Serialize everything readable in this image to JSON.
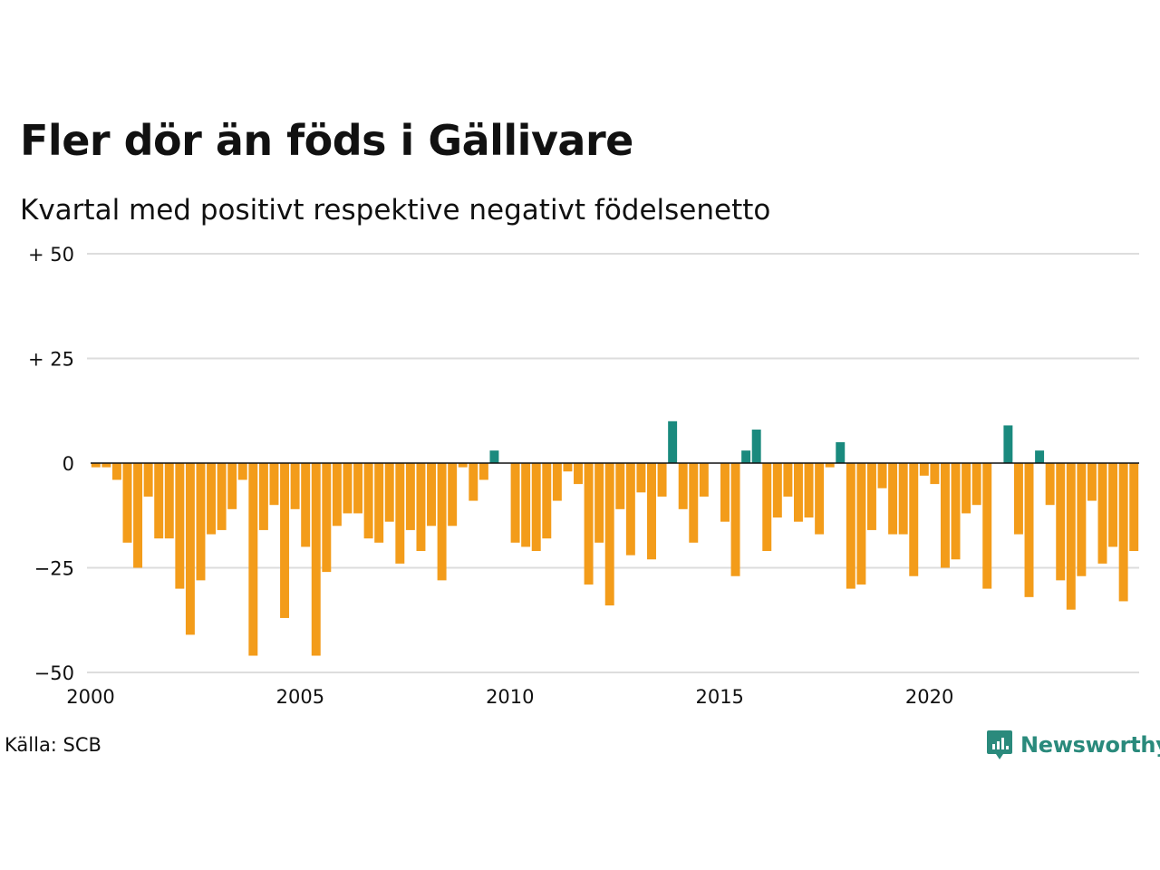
{
  "title": "Fler dör än föds i Gällivare",
  "subtitle": "Kvartal med positivt respektive negativt födelsenetto",
  "source": "Källa: SCB",
  "brand": "Newsworthy",
  "colors": {
    "negative": "#f39c1a",
    "positive": "#1a8a7e",
    "grid": "#dddddd",
    "zero": "#111111",
    "brand": "#2a8a7c"
  },
  "chart_data": {
    "type": "bar",
    "xlim": [
      2000,
      2025
    ],
    "ylim": [
      -50,
      50
    ],
    "y_ticks": [
      {
        "value": 50,
        "label": "+ 50"
      },
      {
        "value": 25,
        "label": "+ 25"
      },
      {
        "value": 0,
        "label": "0"
      },
      {
        "value": -25,
        "label": "−25"
      },
      {
        "value": -50,
        "label": "−50"
      }
    ],
    "x_ticks": [
      {
        "value": 2000,
        "label": "2000"
      },
      {
        "value": 2005,
        "label": "2005"
      },
      {
        "value": 2010,
        "label": "2010"
      },
      {
        "value": 2015,
        "label": "2015"
      },
      {
        "value": 2020,
        "label": "2020"
      }
    ],
    "grid": true,
    "series": [
      {
        "start": "2000 Q1",
        "frequency": "quarterly",
        "values": [
          -1,
          -1,
          -4,
          -19,
          -25,
          -8,
          -18,
          -18,
          -30,
          -41,
          -28,
          -17,
          -16,
          -11,
          -4,
          -46,
          -16,
          -10,
          -37,
          -11,
          -20,
          -46,
          -26,
          -15,
          -12,
          -12,
          -18,
          -19,
          -14,
          -24,
          -16,
          -21,
          -15,
          -28,
          -15,
          -1,
          -9,
          -4,
          3,
          0,
          -19,
          -20,
          -21,
          -18,
          -9,
          -2,
          -5,
          -29,
          -19,
          -34,
          -11,
          -22,
          -7,
          -23,
          -8,
          10,
          -11,
          -19,
          -8,
          0,
          -14,
          -27,
          3,
          8,
          -21,
          -13,
          -8,
          -14,
          -13,
          -17,
          -1,
          5,
          -30,
          -29,
          -16,
          -6,
          -17,
          -17,
          -27,
          -3,
          -5,
          -25,
          -23,
          -12,
          -10,
          -30,
          0,
          9,
          -17,
          -32,
          3,
          -10,
          -28,
          -35,
          -27,
          -9,
          -24,
          -20,
          -33,
          -21
        ]
      }
    ]
  }
}
